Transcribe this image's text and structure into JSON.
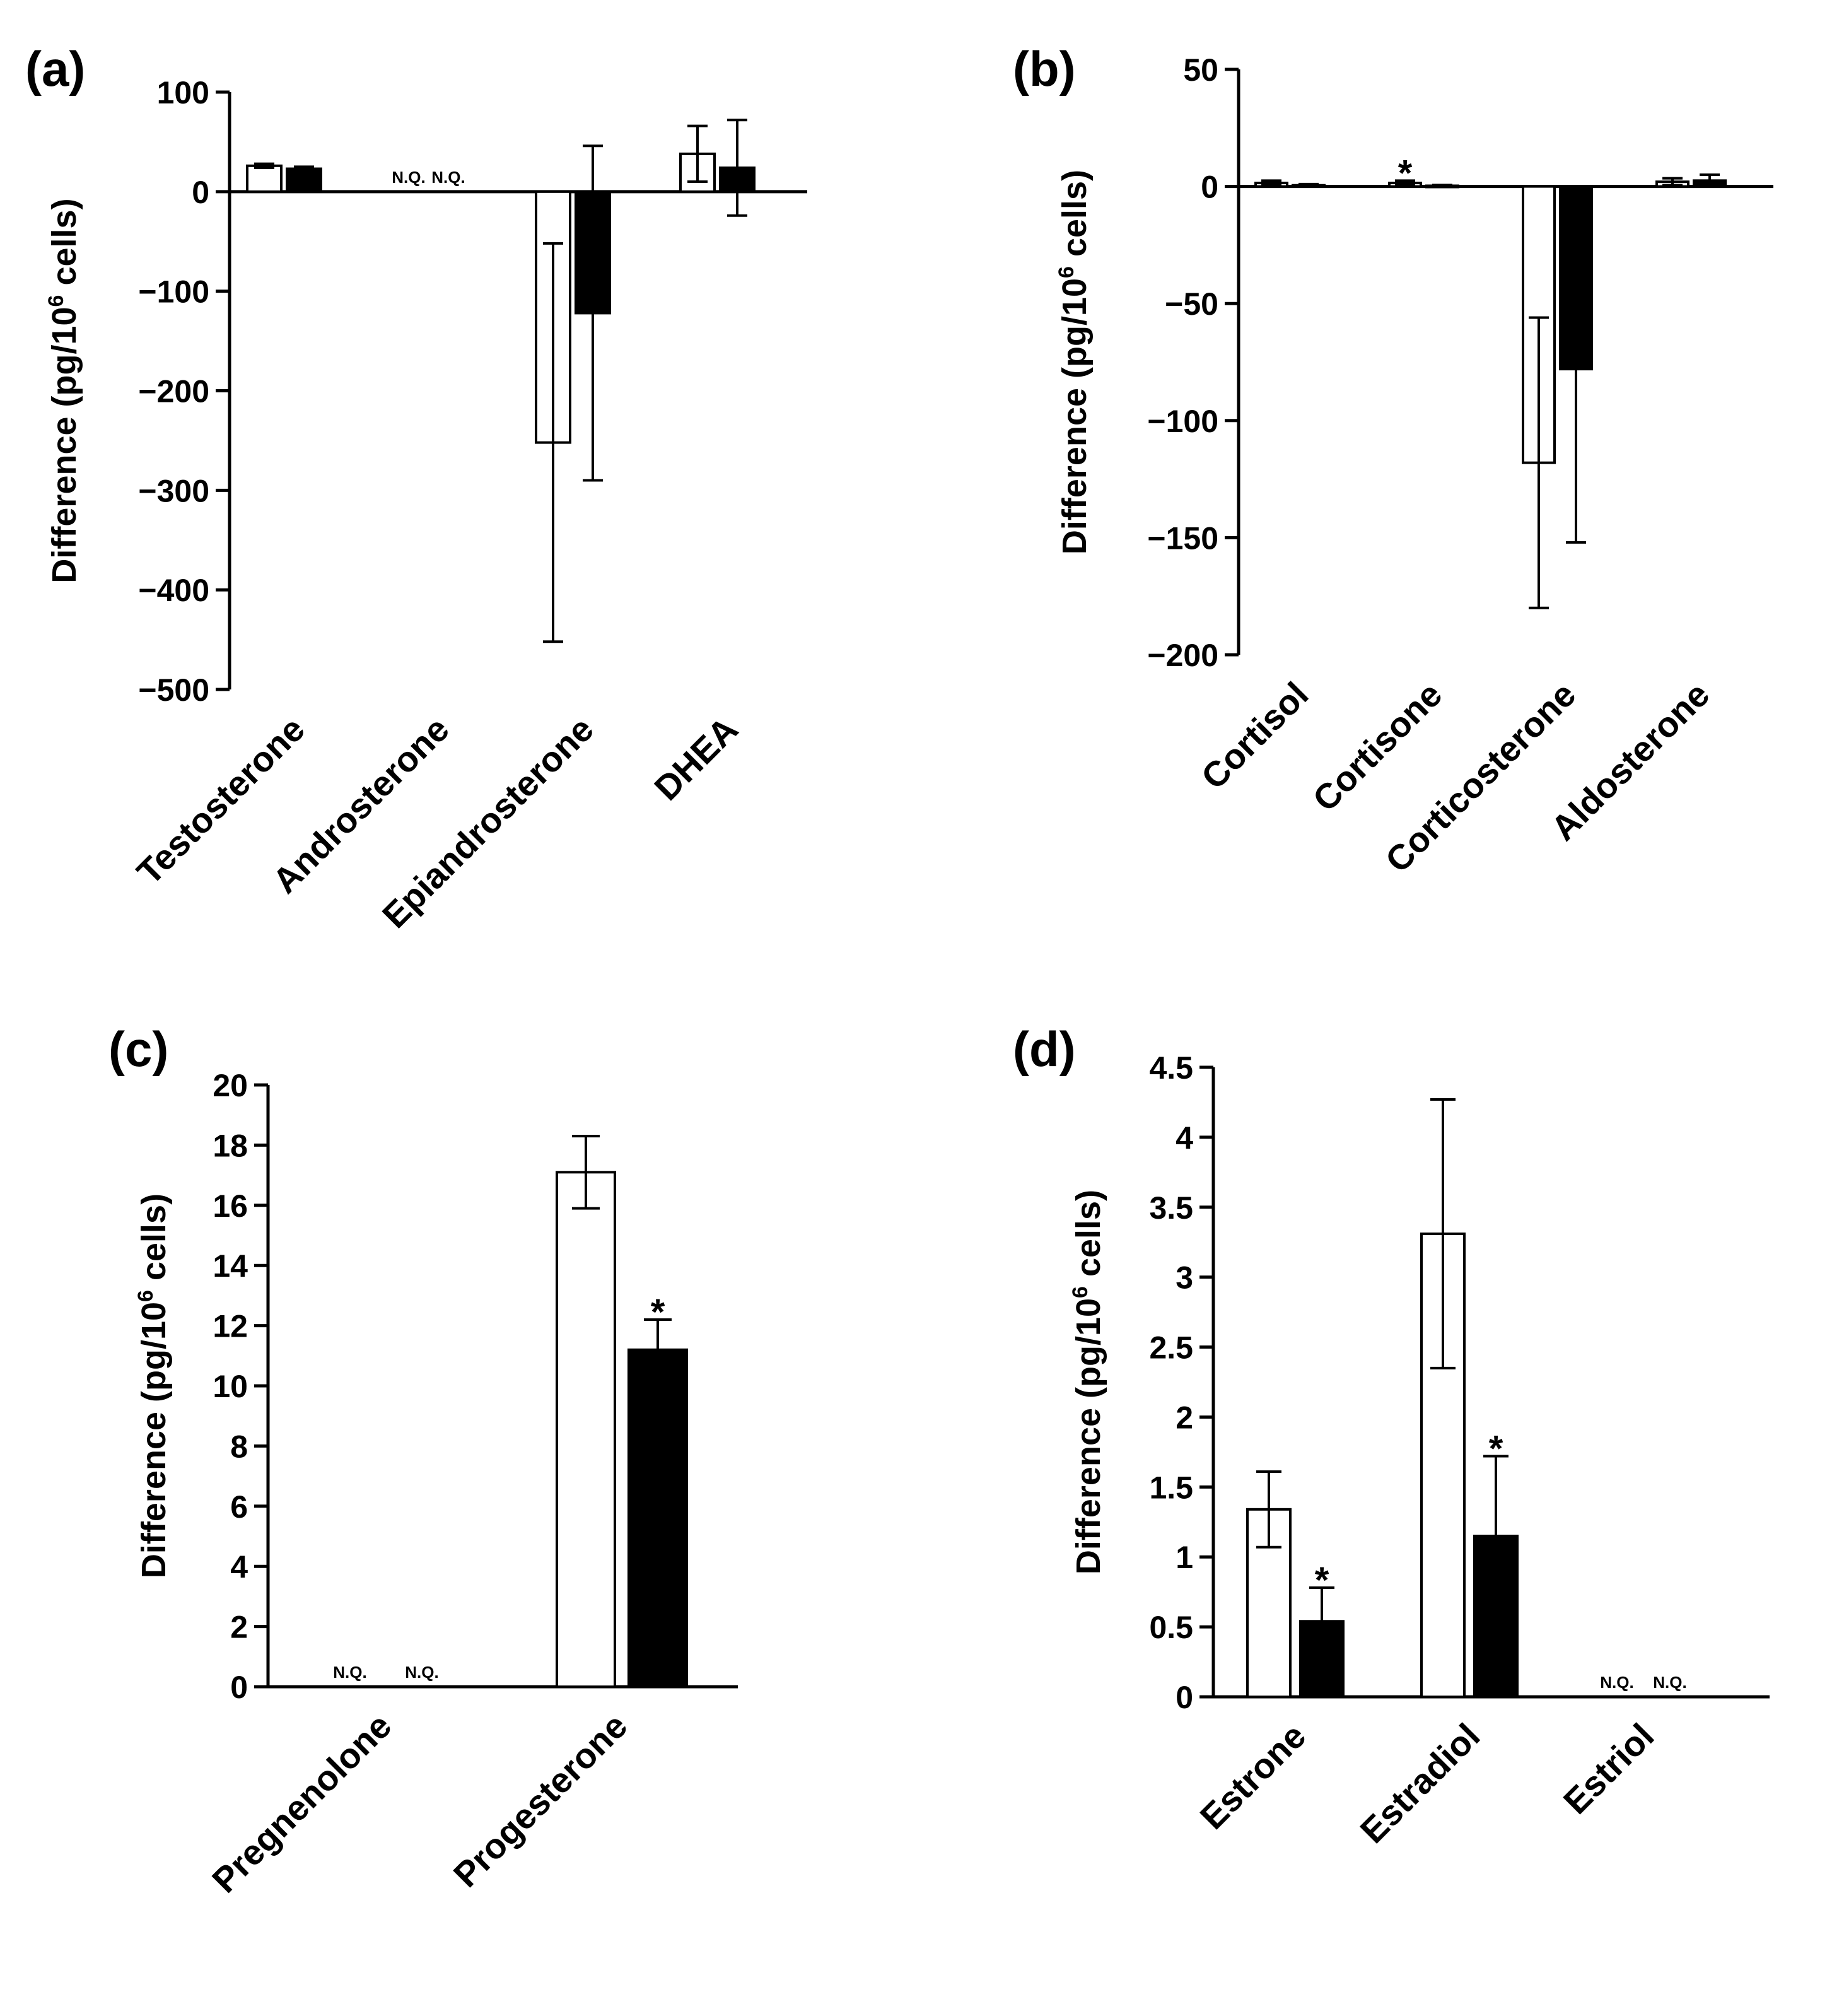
{
  "figure": {
    "colors": {
      "open_bar": "#ffffff",
      "filled_bar": "#000000",
      "axis": "#000000"
    },
    "nq_text": "N.Q.",
    "star_text": "*"
  },
  "chart_data": [
    {
      "panel": "(a)",
      "type": "bar",
      "ylabel_main": "Difference (pg/10",
      "ylabel_sup": "6",
      "ylabel_end": " cells)",
      "ylim": [
        -500,
        100
      ],
      "yticks": [
        100,
        0,
        -100,
        -200,
        -300,
        -400,
        -500
      ],
      "ytick_labels": [
        "100",
        "0",
        "−100",
        "−200",
        "−300",
        "−400",
        "−500"
      ],
      "categories": [
        "Testosterone",
        "Androsterone",
        "Epiandrosterone",
        "DHEA"
      ],
      "series": [
        {
          "name": "open",
          "values": [
            26,
            null,
            -252,
            38
          ],
          "errors": [
            2,
            null,
            200,
            28
          ],
          "nq": [
            false,
            true,
            false,
            false
          ],
          "stars": [
            false,
            false,
            false,
            false
          ]
        },
        {
          "name": "filled",
          "values": [
            23,
            null,
            -122,
            24
          ],
          "errors": [
            2,
            null,
            168,
            48
          ],
          "nq": [
            false,
            true,
            false,
            false
          ],
          "stars": [
            false,
            false,
            false,
            false
          ]
        }
      ]
    },
    {
      "panel": "(b)",
      "type": "bar",
      "ylabel_main": "Difference (pg/10",
      "ylabel_sup": "6",
      "ylabel_end": " cells)",
      "ylim": [
        -200,
        50
      ],
      "yticks": [
        50,
        0,
        -50,
        -100,
        -150,
        -200
      ],
      "ytick_labels": [
        "50",
        "0",
        "−50",
        "−100",
        "−150",
        "−200"
      ],
      "categories": [
        "Cortisol",
        "Cortisone",
        "Corticosterone",
        "Aldosterone"
      ],
      "series": [
        {
          "name": "open",
          "values": [
            1.5,
            1.5,
            -118,
            2
          ],
          "errors": [
            1,
            1,
            62,
            1.5
          ],
          "nq": [
            false,
            false,
            false,
            false
          ],
          "stars": [
            false,
            true,
            false,
            false
          ]
        },
        {
          "name": "filled",
          "values": [
            0.5,
            0.3,
            -78,
            2.5
          ],
          "errors": [
            0.5,
            0.3,
            74,
            2.5
          ],
          "nq": [
            false,
            false,
            false,
            false
          ],
          "stars": [
            false,
            false,
            false,
            false
          ]
        }
      ]
    },
    {
      "panel": "(c)",
      "type": "bar",
      "ylabel_main": "Difference (pg/10",
      "ylabel_sup": "6",
      "ylabel_end": " cells)",
      "ylim": [
        0,
        20
      ],
      "yticks": [
        20,
        18,
        16,
        14,
        12,
        10,
        8,
        6,
        4,
        2,
        0
      ],
      "ytick_labels": [
        "20",
        "18",
        "16",
        "14",
        "12",
        "10",
        "8",
        "6",
        "4",
        "2",
        "0"
      ],
      "categories": [
        "Pregnenolone",
        "Progesterone"
      ],
      "series": [
        {
          "name": "open",
          "values": [
            null,
            17.1
          ],
          "errors": [
            null,
            1.2
          ],
          "nq": [
            true,
            false
          ],
          "stars": [
            false,
            false
          ]
        },
        {
          "name": "filled",
          "values": [
            null,
            11.2
          ],
          "errors": [
            null,
            1.0
          ],
          "nq": [
            true,
            false
          ],
          "stars": [
            false,
            true
          ]
        }
      ]
    },
    {
      "panel": "(d)",
      "type": "bar",
      "ylabel_main": "Difference (pg/10",
      "ylabel_sup": "6",
      "ylabel_end": " cells)",
      "ylim": [
        0,
        4.5
      ],
      "yticks": [
        4.5,
        4,
        3.5,
        3,
        2.5,
        2,
        1.5,
        1,
        0.5,
        0
      ],
      "ytick_labels": [
        "4.5",
        "4",
        "3.5",
        "3",
        "2.5",
        "2",
        "1.5",
        "1",
        "0.5",
        "0"
      ],
      "categories": [
        "Estrone",
        "Estradiol",
        "Estriol"
      ],
      "series": [
        {
          "name": "open",
          "values": [
            1.34,
            3.31,
            null
          ],
          "errors": [
            0.27,
            0.96,
            null
          ],
          "nq": [
            false,
            false,
            true
          ],
          "stars": [
            false,
            false,
            false
          ]
        },
        {
          "name": "filled",
          "values": [
            0.54,
            1.15,
            null
          ],
          "errors": [
            0.24,
            0.57,
            null
          ],
          "nq": [
            false,
            false,
            true
          ],
          "stars": [
            true,
            true,
            false
          ]
        }
      ]
    }
  ]
}
